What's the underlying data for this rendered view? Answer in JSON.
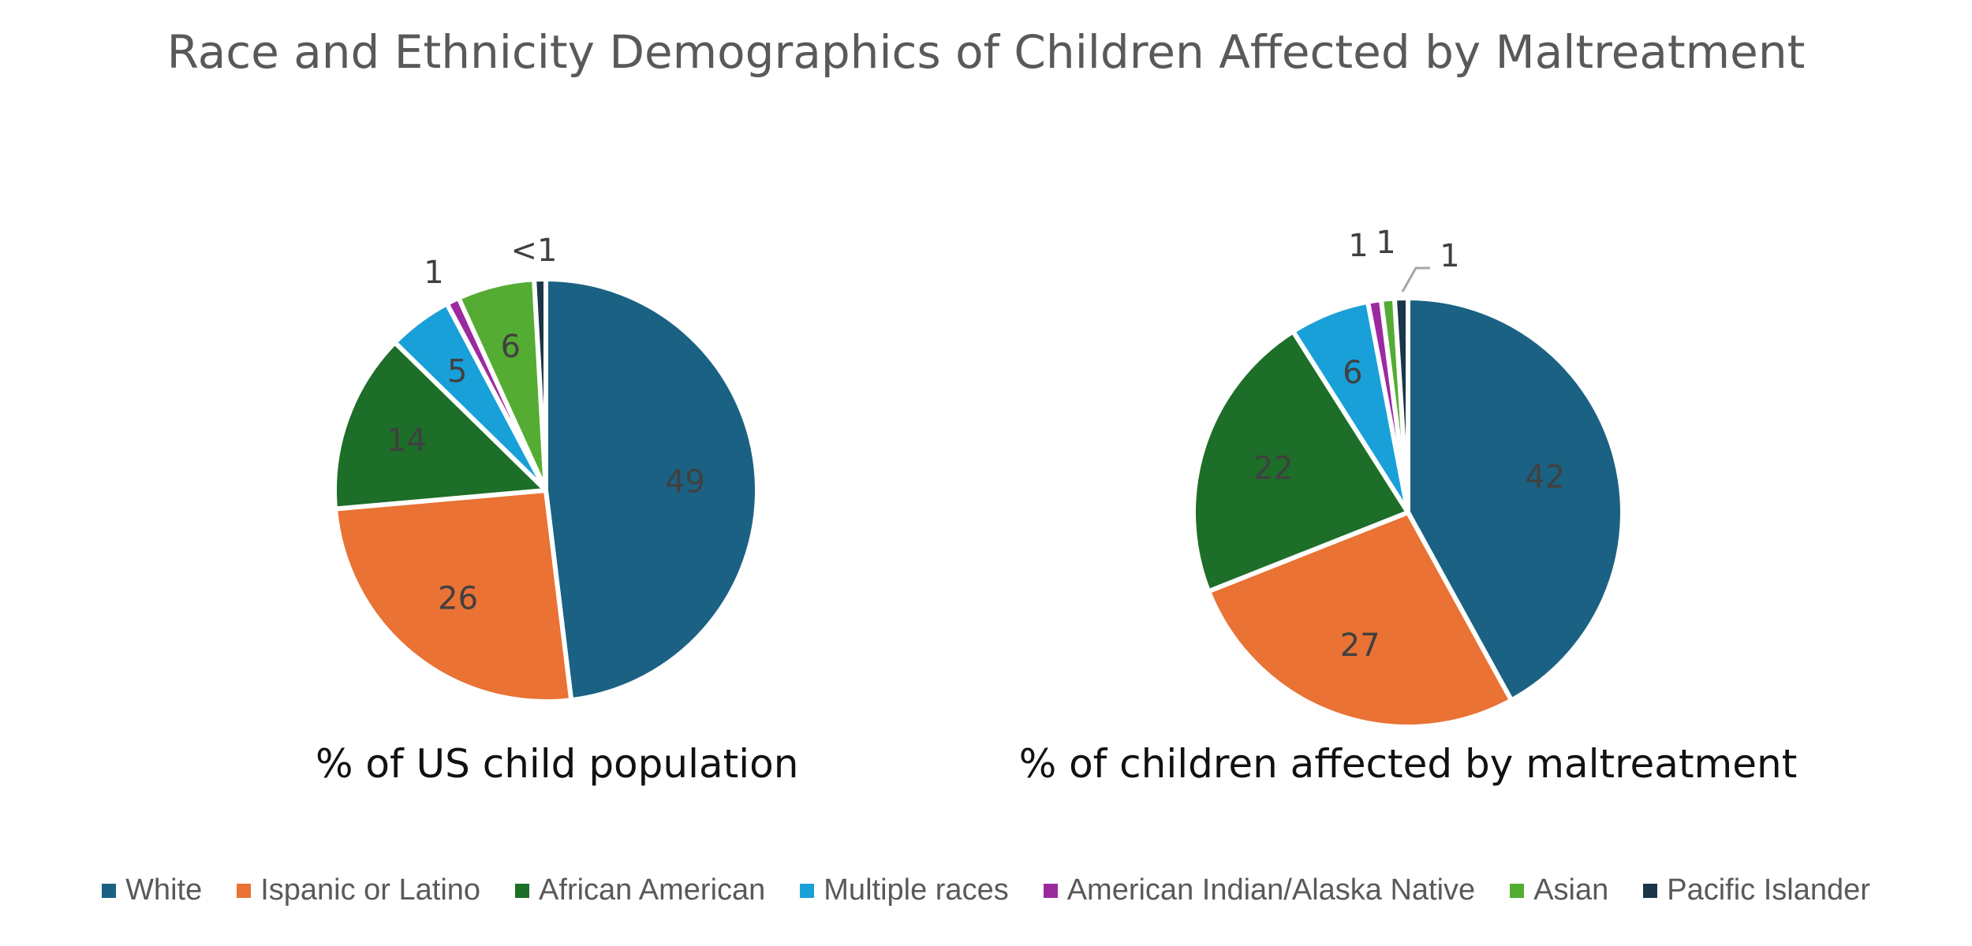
{
  "chart_data": {
    "title": "Race and Ethnicity Demographics of Children Affected by Maltreatment",
    "legend_position": "bottom",
    "categories": [
      "White",
      "Ispanic or Latino",
      "African American",
      "Multiple races",
      "American Indian/Alaska Native",
      "Asian",
      "Pacific Islander"
    ],
    "colors": [
      "#1b6183",
      "#e97234",
      "#1d6e28",
      "#1aa0d9",
      "#9c2a9f",
      "#54ac33",
      "#1a3648"
    ],
    "charts": [
      {
        "type": "pie",
        "caption": "% of US child population",
        "values": [
          49,
          26,
          14,
          5,
          1,
          6,
          0.9
        ],
        "labels": [
          "49",
          "26",
          "14",
          "5",
          "1",
          "6",
          "<1"
        ]
      },
      {
        "type": "pie",
        "caption": "% of children affected by maltreatment",
        "values": [
          42,
          27,
          22,
          6,
          1,
          1,
          1
        ],
        "labels": [
          "42",
          "27",
          "22",
          "6",
          "1",
          "1",
          "1"
        ]
      }
    ]
  }
}
